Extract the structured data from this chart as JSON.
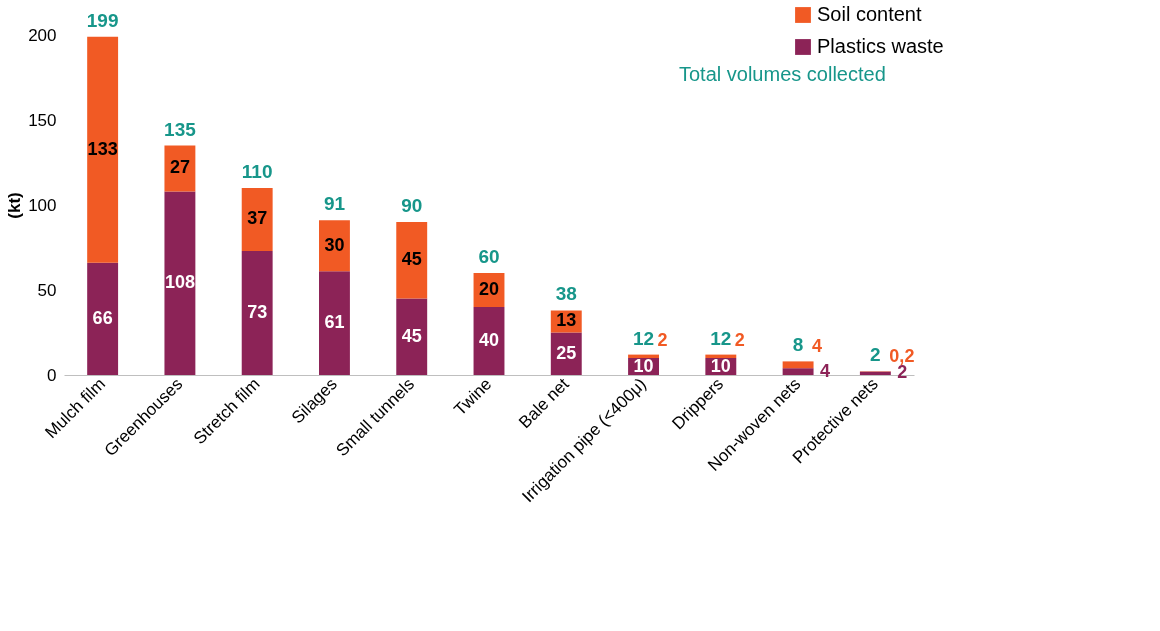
{
  "chart_data": {
    "type": "bar",
    "stacked": true,
    "ylabel": "(kt)",
    "categories": [
      "Mulch film",
      "Greenhouses",
      "Stretch film",
      "Silages",
      "Small tunnels",
      "Twine",
      "Bale net",
      "Irrigation pipe (<400μ)",
      "Drippers",
      "Non-woven nets",
      "Protective nets"
    ],
    "series": [
      {
        "name": "Plastics waste",
        "color": "#8c2357",
        "values": [
          66,
          108,
          73,
          61,
          45,
          40,
          25,
          10,
          10,
          4,
          2
        ],
        "value_labels": [
          "66",
          "108",
          "73",
          "61",
          "45",
          "40",
          "25",
          "10",
          "10",
          "4",
          "2"
        ]
      },
      {
        "name": "Soil content",
        "color": "#f15a24",
        "values": [
          133,
          27,
          37,
          30,
          45,
          20,
          13,
          2,
          2,
          4,
          0.2
        ],
        "value_labels": [
          "133",
          "27",
          "37",
          "30",
          "45",
          "20",
          "13",
          "2",
          "2",
          "4",
          "0,2"
        ]
      }
    ],
    "totals": [
      "199",
      "135",
      "110",
      "91",
      "90",
      "60",
      "38",
      "12",
      "12",
      "8",
      "2"
    ],
    "annotations": [
      "Total volumes collected"
    ],
    "ylim": [
      0,
      200
    ],
    "yticks": [
      0,
      50,
      100,
      150,
      200
    ],
    "grid": false,
    "legend": "top right"
  }
}
